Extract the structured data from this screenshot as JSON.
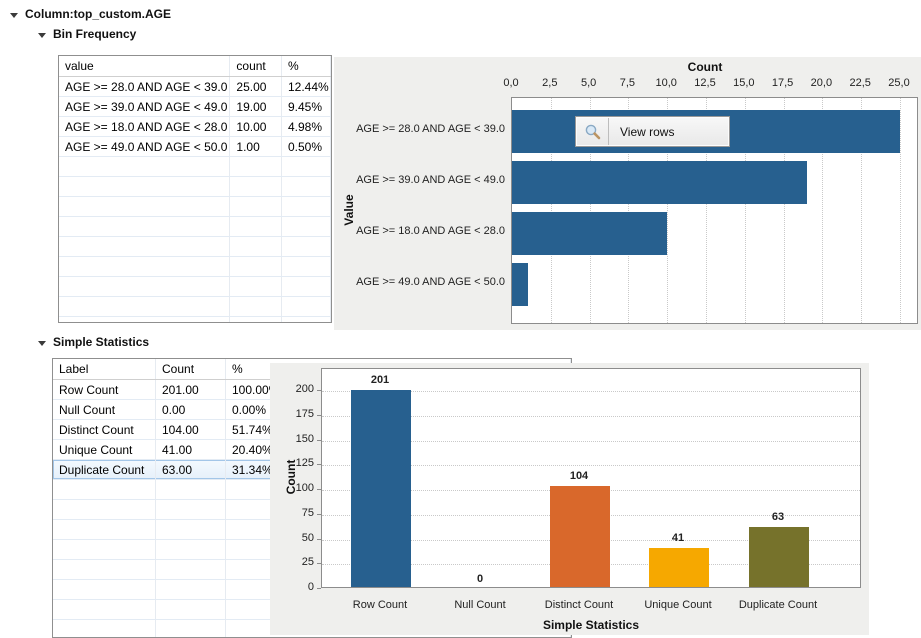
{
  "page_title": "Column:top_custom.AGE",
  "bin_frequency": {
    "title": "Bin Frequency",
    "table": {
      "columns": [
        "value",
        "count",
        "%"
      ],
      "rows": [
        [
          "AGE >= 28.0 AND AGE < 39.0",
          "25.00",
          "12.44%"
        ],
        [
          "AGE >= 39.0 AND AGE < 49.0",
          "19.00",
          "9.45%"
        ],
        [
          "AGE >= 18.0 AND AGE < 28.0",
          "10.00",
          "4.98%"
        ],
        [
          "AGE >= 49.0 AND AGE < 50.0",
          "1.00",
          "0.50%"
        ]
      ]
    },
    "tooltip_label": "View rows"
  },
  "simple_statistics": {
    "title": "Simple Statistics",
    "table": {
      "columns": [
        "Label",
        "Count",
        "%"
      ],
      "rows": [
        [
          "Row Count",
          "201.00",
          "100.00%"
        ],
        [
          "Null Count",
          "0.00",
          "0.00%"
        ],
        [
          "Distinct Count",
          "104.00",
          "51.74%"
        ],
        [
          "Unique Count",
          "41.00",
          "20.40%"
        ],
        [
          "Duplicate Count",
          "63.00",
          "31.34%"
        ]
      ],
      "selected_row": 4
    }
  },
  "chart_data": [
    {
      "type": "bar",
      "orientation": "horizontal",
      "title": "Count",
      "xlabel": "Count",
      "ylabel": "Value",
      "categories": [
        "AGE >= 28.0 AND AGE < 39.0",
        "AGE >= 39.0 AND AGE < 49.0",
        "AGE >= 18.0 AND AGE < 28.0",
        "AGE >= 49.0 AND AGE < 50.0"
      ],
      "values": [
        25,
        19,
        10,
        1
      ],
      "xlim": [
        0,
        25
      ],
      "xtick_labels": [
        "0,0",
        "2,5",
        "5,0",
        "7,5",
        "10,0",
        "12,5",
        "15,0",
        "17,5",
        "20,0",
        "22,5",
        "25,0"
      ],
      "bar_color": "#27608F",
      "grid": "vertical-dotted",
      "legend": "none"
    },
    {
      "type": "bar",
      "orientation": "vertical",
      "title": "",
      "xlabel": "Simple Statistics",
      "ylabel": "Count",
      "categories": [
        "Row Count",
        "Null Count",
        "Distinct Count",
        "Unique Count",
        "Duplicate Count"
      ],
      "values": [
        201,
        0,
        104,
        41,
        63
      ],
      "value_labels": [
        "201",
        "0",
        "104",
        "41",
        "63"
      ],
      "ylim": [
        0,
        200
      ],
      "yticks": [
        0,
        25,
        50,
        75,
        100,
        125,
        150,
        175,
        200
      ],
      "bar_colors": [
        "#27608F",
        "#27608F",
        "#D9682B",
        "#F6A800",
        "#76722B"
      ],
      "grid": "horizontal-dotted",
      "legend": "none"
    }
  ],
  "colors": {
    "panel_bg": "#efefed",
    "bar_blue": "#27608F",
    "bar_orange": "#D9682B",
    "bar_yellow": "#F6A800",
    "bar_olive": "#76722B"
  }
}
